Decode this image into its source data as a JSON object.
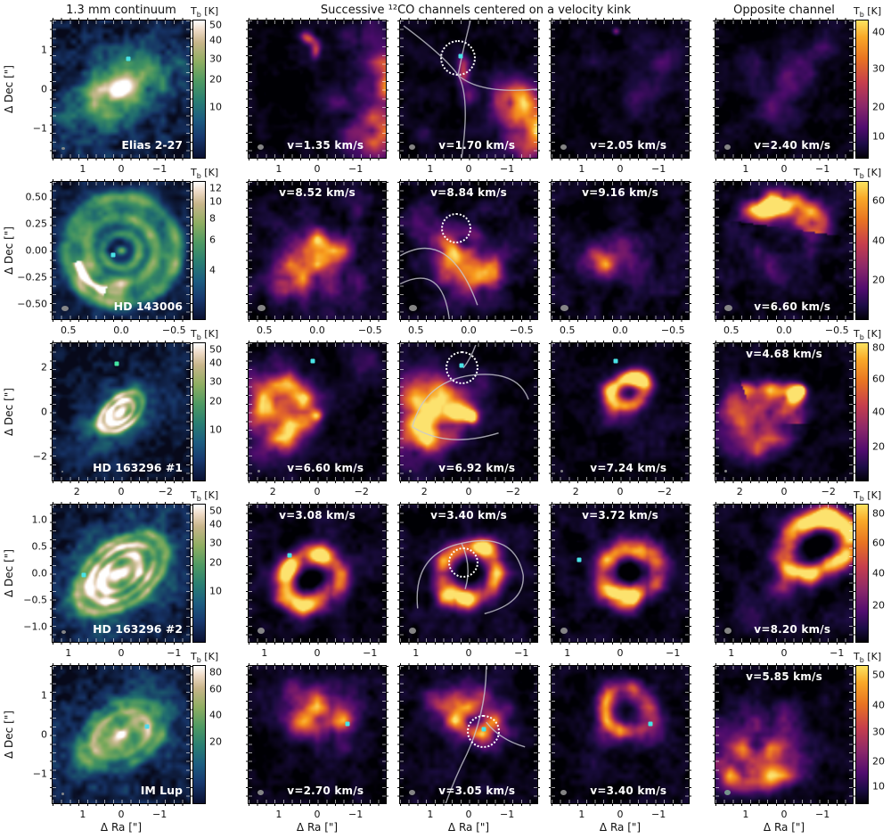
{
  "headers": {
    "continuum": "1.3 mm continuum",
    "channels": "Successive ¹²CO channels centered on a velocity kink",
    "opposite": "Opposite channel"
  },
  "colorbar": {
    "t": "T",
    "sub": "b",
    "unit": " [K]"
  },
  "axis": {
    "x_label": "Δ Ra [\"]",
    "y_label": "Δ Dec [\"]"
  },
  "rows": [
    {
      "target": "Elias 2-27",
      "y_ticks": [
        "1",
        "0",
        "−1"
      ],
      "x_ticks": [
        "1",
        "0",
        "−1"
      ],
      "cbar_left": [
        "50",
        "40",
        "30",
        "20",
        "10"
      ],
      "cbar_right": [
        "40",
        "30",
        "20",
        "10"
      ],
      "v1": "v=1.35 km/s",
      "v2": "v=1.70 km/s",
      "v3": "v=2.05 km/s",
      "vo": "v=2.40 km/s"
    },
    {
      "target": "HD 143006",
      "y_ticks": [
        "0.50",
        "0.25",
        "0.00",
        "−0.25",
        "−0.50"
      ],
      "x_ticks": [
        "0.5",
        "0.0",
        "−0.5"
      ],
      "cbar_left": [
        "12",
        "10",
        "8",
        "6",
        "4"
      ],
      "cbar_right": [
        "60",
        "40",
        "20"
      ],
      "v1": "v=8.52 km/s",
      "v2": "v=8.84 km/s",
      "v3": "v=9.16 km/s",
      "vo": "v=6.60 km/s"
    },
    {
      "target": "HD 163296 #1",
      "y_ticks": [
        "2",
        "0",
        "−2"
      ],
      "x_ticks": [
        "2",
        "0",
        "−2"
      ],
      "cbar_left": [
        "50",
        "40",
        "30",
        "20",
        "10"
      ],
      "cbar_right": [
        "80",
        "60",
        "40",
        "20"
      ],
      "v1": "v=6.60 km/s",
      "v2": "v=6.92 km/s",
      "v3": "v=7.24 km/s",
      "vo": "v=4.68 km/s"
    },
    {
      "target": "HD 163296 #2",
      "y_ticks": [
        "1.0",
        "0.5",
        "0.0",
        "−0.5",
        "−1.0"
      ],
      "x_ticks": [
        "1",
        "0",
        "−1"
      ],
      "cbar_left": [
        "50",
        "40",
        "30",
        "20",
        "10"
      ],
      "cbar_right": [
        "80",
        "60",
        "40",
        "20"
      ],
      "v1": "v=3.08 km/s",
      "v2": "v=3.40 km/s",
      "v3": "v=3.72 km/s",
      "vo": "v=8.20 km/s"
    },
    {
      "target": "IM Lup",
      "y_ticks": [
        "1",
        "0",
        "−1"
      ],
      "x_ticks": [
        "1",
        "0",
        "−1"
      ],
      "cbar_left": [
        "80",
        "60",
        "40",
        "20"
      ],
      "cbar_right": [
        "50",
        "40",
        "30",
        "20",
        "10"
      ],
      "v1": "v=2.70 km/s",
      "v2": "v=3.05 km/s",
      "v3": "v=3.40 km/s",
      "vo": "v=5.85 km/s"
    }
  ]
}
